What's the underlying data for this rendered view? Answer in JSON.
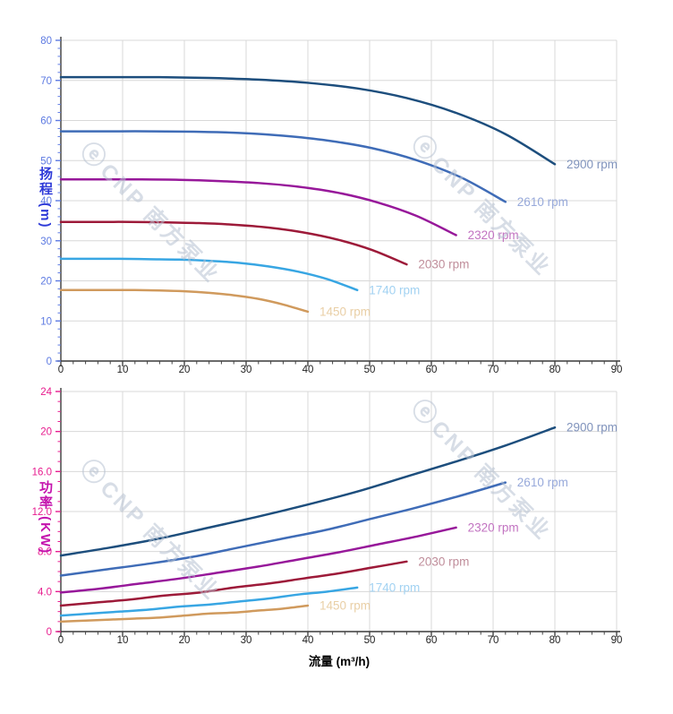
{
  "watermark": {
    "logo": "ⓔ",
    "text": "CNP 南方泵业"
  },
  "chart_data": [
    {
      "type": "line",
      "title": "",
      "ylabel": "扬程 (m)",
      "xlabel": "",
      "xlim": [
        0,
        90
      ],
      "ylim": [
        0,
        80
      ],
      "x_major_step": 10,
      "x_minor_step": 2,
      "y_major_step": 10,
      "y_minor_step": 2,
      "x_tick_labels": [
        "0",
        "10",
        "20",
        "30",
        "40",
        "50",
        "60",
        "70",
        "80",
        "90"
      ],
      "y_tick_labels": [
        "0",
        "10",
        "20",
        "30",
        "40",
        "50",
        "60",
        "70",
        "80"
      ],
      "ylabel_color": "#2f3bd8",
      "y_tick_color": "#5d7ae2",
      "x_tick_color": "#222222",
      "grid_color": "#d8d8d8",
      "axis_color": "#3a3a3a",
      "legend_position": "end-of-curve",
      "grid": true,
      "series": [
        {
          "name": "2900 rpm",
          "color": "#1d4e7d",
          "label_color": "#8093bc",
          "x": [
            0,
            8,
            16,
            24,
            32,
            40,
            48,
            56,
            64,
            72,
            80
          ],
          "y": [
            70.8,
            70.8,
            70.8,
            70.6,
            70.2,
            69.4,
            68.0,
            65.6,
            61.9,
            56.6,
            49.1
          ]
        },
        {
          "name": "2610 rpm",
          "color": "#3f6cb7",
          "label_color": "#97a9da",
          "x": [
            0,
            7.2,
            14.4,
            21.6,
            28.8,
            36,
            43.2,
            50.4,
            57.6,
            64.8,
            72
          ],
          "y": [
            57.3,
            57.3,
            57.3,
            57.2,
            56.9,
            56.2,
            55.0,
            53.1,
            50.1,
            45.8,
            39.7
          ]
        },
        {
          "name": "2320 rpm",
          "color": "#97189a",
          "label_color": "#c273c1",
          "x": [
            0,
            6.4,
            12.8,
            19.2,
            25.6,
            32,
            38.4,
            44.8,
            51.2,
            57.6,
            64
          ],
          "y": [
            45.3,
            45.3,
            45.3,
            45.2,
            44.9,
            44.4,
            43.5,
            42.0,
            39.6,
            36.2,
            31.4
          ]
        },
        {
          "name": "2030 rpm",
          "color": "#9d1a39",
          "label_color": "#c08e9b",
          "x": [
            0,
            5.6,
            11.2,
            16.8,
            22.4,
            28,
            33.6,
            39.2,
            44.8,
            50.4,
            56
          ],
          "y": [
            34.7,
            34.7,
            34.7,
            34.6,
            34.4,
            34.0,
            33.3,
            32.1,
            30.3,
            27.7,
            24.1
          ]
        },
        {
          "name": "1740 rpm",
          "color": "#38a6e3",
          "label_color": "#a2d2f2",
          "x": [
            0,
            4.8,
            9.6,
            14.4,
            19.2,
            24,
            28.8,
            33.6,
            38.4,
            43.2,
            48
          ],
          "y": [
            25.5,
            25.5,
            25.5,
            25.4,
            25.3,
            25.0,
            24.5,
            23.6,
            22.3,
            20.4,
            17.7
          ]
        },
        {
          "name": "1450 rpm",
          "color": "#d09a5d",
          "label_color": "#e9cfa6",
          "x": [
            0,
            4,
            8,
            12,
            16,
            20,
            24,
            28,
            32,
            36,
            40
          ],
          "y": [
            17.7,
            17.7,
            17.7,
            17.7,
            17.6,
            17.4,
            17.0,
            16.4,
            15.5,
            14.1,
            12.3
          ]
        }
      ]
    },
    {
      "type": "line",
      "title": "",
      "ylabel": "功率 (KW)",
      "xlabel": "流量 (m³/h)",
      "xlim": [
        0,
        90
      ],
      "ylim": [
        0,
        24
      ],
      "x_major_step": 10,
      "x_minor_step": 2,
      "y_major_step": 4,
      "y_minor_step": 1,
      "x_tick_labels": [
        "0",
        "10",
        "20",
        "30",
        "40",
        "50",
        "60",
        "70",
        "80",
        "90"
      ],
      "y_tick_labels": [
        "0",
        "4.0",
        "8.0",
        "12.0",
        "16.0",
        "20",
        "24"
      ],
      "ylabel_color": "#c413ad",
      "y_tick_color": "#e71d8f",
      "x_tick_color": "#222222",
      "grid_color": "#d8d8d8",
      "axis_color": "#3a3a3a",
      "legend_position": "end-of-curve",
      "grid": true,
      "series": [
        {
          "name": "2900 rpm",
          "color": "#1d4e7d",
          "label_color": "#8093bc",
          "x": [
            0,
            8,
            16,
            24,
            32,
            40,
            48,
            56,
            64,
            72,
            80
          ],
          "y": [
            7.6,
            8.4,
            9.3,
            10.4,
            11.5,
            12.7,
            14.0,
            15.5,
            17.0,
            18.6,
            20.4
          ]
        },
        {
          "name": "2610 rpm",
          "color": "#3f6cb7",
          "label_color": "#97a9da",
          "x": [
            0,
            7.2,
            14.4,
            21.6,
            28.8,
            36,
            43.2,
            50.4,
            57.6,
            64.8,
            72
          ],
          "y": [
            5.6,
            6.2,
            6.8,
            7.5,
            8.4,
            9.3,
            10.2,
            11.3,
            12.4,
            13.6,
            14.9
          ]
        },
        {
          "name": "2320 rpm",
          "color": "#97189a",
          "label_color": "#c273c1",
          "x": [
            0,
            6.4,
            12.8,
            19.2,
            25.6,
            32,
            38.4,
            44.8,
            51.2,
            57.6,
            64
          ],
          "y": [
            3.9,
            4.3,
            4.8,
            5.3,
            5.9,
            6.5,
            7.2,
            7.9,
            8.7,
            9.5,
            10.4
          ]
        },
        {
          "name": "2030 rpm",
          "color": "#9d1a39",
          "label_color": "#c08e9b",
          "x": [
            0,
            5.6,
            11.2,
            16.8,
            22.4,
            28,
            33.6,
            39.2,
            44.8,
            50.4,
            56
          ],
          "y": [
            2.6,
            2.9,
            3.2,
            3.6,
            3.9,
            4.4,
            4.8,
            5.3,
            5.8,
            6.4,
            7.0
          ]
        },
        {
          "name": "1740 rpm",
          "color": "#38a6e3",
          "label_color": "#a2d2f2",
          "x": [
            0,
            4.8,
            9.6,
            14.4,
            19.2,
            24,
            28.8,
            33.6,
            38.4,
            43.2,
            48
          ],
          "y": [
            1.6,
            1.8,
            2.0,
            2.2,
            2.5,
            2.7,
            3.0,
            3.3,
            3.7,
            4.0,
            4.4
          ]
        },
        {
          "name": "1450 rpm",
          "color": "#d09a5d",
          "label_color": "#e9cfa6",
          "x": [
            0,
            4,
            8,
            12,
            16,
            20,
            24,
            28,
            32,
            36,
            40
          ],
          "y": [
            1.0,
            1.1,
            1.2,
            1.3,
            1.4,
            1.6,
            1.8,
            1.9,
            2.1,
            2.3,
            2.6
          ]
        }
      ]
    }
  ]
}
